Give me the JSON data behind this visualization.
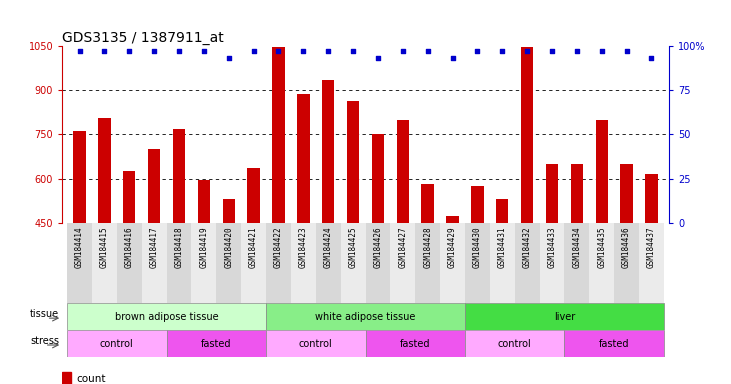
{
  "title": "GDS3135 / 1387911_at",
  "samples": [
    "GSM184414",
    "GSM184415",
    "GSM184416",
    "GSM184417",
    "GSM184418",
    "GSM184419",
    "GSM184420",
    "GSM184421",
    "GSM184422",
    "GSM184423",
    "GSM184424",
    "GSM184425",
    "GSM184426",
    "GSM184427",
    "GSM184428",
    "GSM184429",
    "GSM184430",
    "GSM184431",
    "GSM184432",
    "GSM184433",
    "GSM184434",
    "GSM184435",
    "GSM184436",
    "GSM184437"
  ],
  "counts": [
    762,
    805,
    627,
    700,
    768,
    594,
    530,
    637,
    1047,
    887,
    935,
    865,
    750,
    800,
    582,
    472,
    575,
    530,
    1047,
    650,
    650,
    800,
    648,
    615
  ],
  "percentile_ranks": [
    97,
    97,
    97,
    97,
    97,
    97,
    93,
    97,
    97,
    97,
    97,
    97,
    93,
    97,
    97,
    93,
    97,
    97,
    97,
    97,
    97,
    97,
    97,
    93
  ],
  "ylim_left": [
    450,
    1050
  ],
  "ylim_right": [
    0,
    100
  ],
  "yticks_left": [
    450,
    600,
    750,
    900,
    1050
  ],
  "yticks_right": [
    0,
    25,
    50,
    75,
    100
  ],
  "bar_color": "#cc0000",
  "dot_color": "#0000cc",
  "gridline_color": "#000000",
  "tissue_groups": [
    {
      "label": "brown adipose tissue",
      "start": 0,
      "end": 7,
      "color": "#ccffcc"
    },
    {
      "label": "white adipose tissue",
      "start": 8,
      "end": 15,
      "color": "#88ee88"
    },
    {
      "label": "liver",
      "start": 16,
      "end": 23,
      "color": "#44dd44"
    }
  ],
  "stress_groups": [
    {
      "label": "control",
      "start": 0,
      "end": 3,
      "color": "#ffaaff"
    },
    {
      "label": "fasted",
      "start": 4,
      "end": 7,
      "color": "#ee55ee"
    },
    {
      "label": "control",
      "start": 8,
      "end": 11,
      "color": "#ffaaff"
    },
    {
      "label": "fasted",
      "start": 12,
      "end": 15,
      "color": "#ee55ee"
    },
    {
      "label": "control",
      "start": 16,
      "end": 19,
      "color": "#ffaaff"
    },
    {
      "label": "fasted",
      "start": 20,
      "end": 23,
      "color": "#ee55ee"
    }
  ],
  "bar_width": 0.5,
  "xticklabel_fontsize": 5.5,
  "title_fontsize": 10,
  "tick_fontsize": 7,
  "label_fontsize": 7,
  "row_fontsize": 7,
  "legend_fontsize": 7.5
}
